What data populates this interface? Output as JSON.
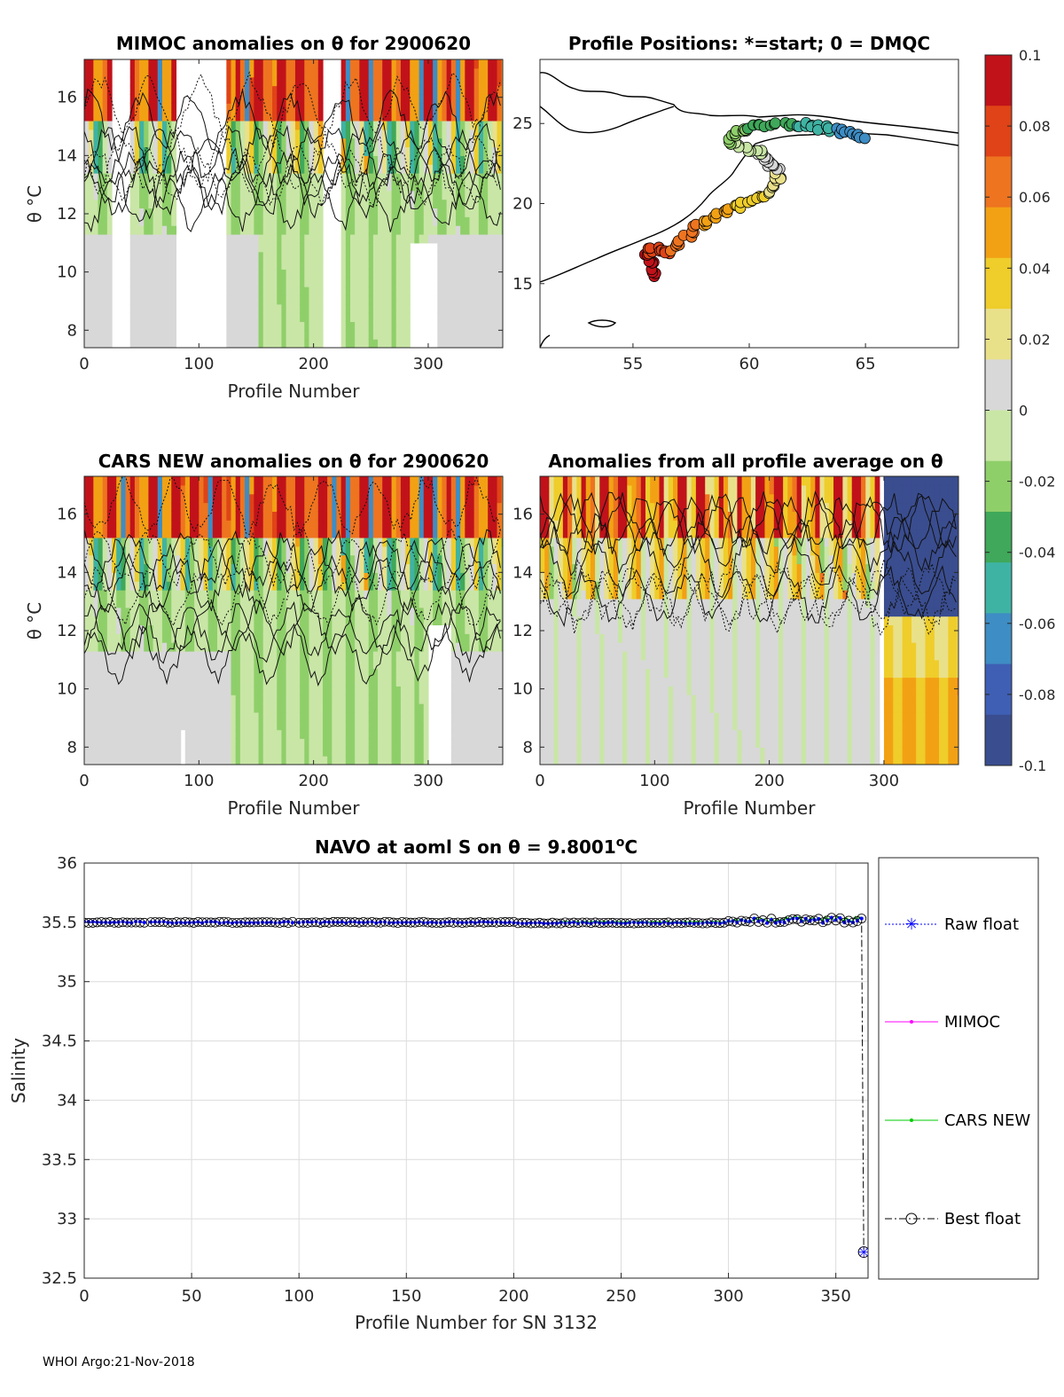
{
  "footer": "WHOI Argo:21-Nov-2018",
  "colors": {
    "ramp": [
      "#3a4d8f",
      "#3f5fb4",
      "#3e8dc4",
      "#3fb3a3",
      "#3fa85a",
      "#8fcf6a",
      "#c9e6a6",
      "#d8d8d8",
      "#e9e08a",
      "#efcd2a",
      "#f2a114",
      "#ee7420",
      "#df4317",
      "#c1121a"
    ],
    "salinity_raw": "#0000ff",
    "salinity_mimoc": "#ff00ff",
    "salinity_cars": "#00cc00",
    "salinity_best": "#000000"
  },
  "panels": {
    "mimoc": {
      "title": "MIMOC anomalies on θ  for 2900620",
      "xlabel": "Profile Number",
      "ylabel": "θ °C",
      "xticks": [
        "0",
        "100",
        "200",
        "300"
      ],
      "yticks": [
        "8",
        "10",
        "12",
        "14",
        "16"
      ]
    },
    "map": {
      "title": "Profile Positions: *=start; 0 = DMQC",
      "xticks": [
        "55",
        "60",
        "65"
      ],
      "yticks": [
        "15",
        "20",
        "25"
      ]
    },
    "cars": {
      "title": "CARS NEW anomalies on θ for 2900620",
      "xlabel": "Profile Number",
      "ylabel": "θ °C",
      "xticks": [
        "0",
        "100",
        "200",
        "300"
      ],
      "yticks": [
        "8",
        "10",
        "12",
        "14",
        "16"
      ]
    },
    "avg": {
      "title": "Anomalies from all profile average on θ",
      "xlabel": "Profile Number",
      "xticks": [
        "0",
        "100",
        "200",
        "300"
      ],
      "yticks": [
        "8",
        "10",
        "12",
        "14",
        "16"
      ]
    }
  },
  "colorbar": {
    "ticks": [
      "0.1",
      "0.08",
      "0.06",
      "0.04",
      "0.02",
      "0",
      "-0.02",
      "-0.04",
      "-0.06",
      "-0.08",
      "-0.1"
    ]
  },
  "chart_data": [
    {
      "type": "heatmap",
      "title": "MIMOC anomalies on θ  for 2900620",
      "xlabel": "Profile Number",
      "ylabel": "θ °C",
      "xlim": [
        0,
        365
      ],
      "ylim": [
        7.4,
        17.3
      ],
      "clim": [
        -0.1,
        0.1
      ]
    },
    {
      "type": "scatter",
      "title": "Profile Positions: *=start; 0 = DMQC",
      "xlim": [
        51,
        69
      ],
      "ylim": [
        11,
        29
      ],
      "track": {
        "lon": [
          56.0,
          55.7,
          55.6,
          55.9,
          56.4,
          57.0,
          57.6,
          58.2,
          58.8,
          59.5,
          60.2,
          60.8,
          61.2,
          61.2,
          60.9,
          60.6,
          60.3,
          59.6,
          59.2,
          59.6,
          60.2,
          61.0,
          62.0,
          62.8,
          63.5,
          64.2,
          65.0
        ],
        "lat": [
          15.6,
          16.3,
          16.9,
          17.2,
          16.9,
          17.6,
          18.3,
          18.9,
          19.4,
          19.8,
          20.2,
          20.7,
          21.3,
          22.0,
          22.5,
          22.9,
          23.2,
          23.6,
          24.0,
          24.5,
          24.8,
          24.9,
          25.0,
          24.8,
          24.6,
          24.4,
          24.2
        ]
      }
    },
    {
      "type": "heatmap",
      "title": "CARS NEW anomalies on θ for 2900620",
      "xlabel": "Profile Number",
      "ylabel": "θ °C",
      "xlim": [
        0,
        365
      ],
      "ylim": [
        7.4,
        17.3
      ],
      "clim": [
        -0.1,
        0.1
      ]
    },
    {
      "type": "heatmap",
      "title": "Anomalies from all profile average on θ",
      "xlabel": "Profile Number",
      "xlim": [
        0,
        365
      ],
      "ylim": [
        7.4,
        17.3
      ],
      "clim": [
        -0.1,
        0.1
      ]
    },
    {
      "type": "line",
      "title": "NAVO at aoml S on θ = 9.8001°C",
      "title_prefix": "NAVO at aoml S on θ = 9.8001",
      "title_deg": "o",
      "title_unit": "C",
      "xlabel": "Profile Number for SN 3132",
      "ylabel": "Salinity",
      "xlim": [
        0,
        365
      ],
      "ylim": [
        32.5,
        36
      ],
      "xticks": [
        "0",
        "50",
        "100",
        "150",
        "200",
        "250",
        "300",
        "350"
      ],
      "yticks": [
        "32.5",
        "33",
        "33.5",
        "34",
        "34.5",
        "35",
        "35.5",
        "36"
      ],
      "series": [
        {
          "name": "Raw float",
          "marker": "*",
          "style": "dotted",
          "approx_value": 35.5,
          "final_point": [
            363,
            32.72
          ]
        },
        {
          "name": "MIMOC",
          "marker": ".",
          "style": "solid",
          "approx_value": 35.5
        },
        {
          "name": "CARS NEW",
          "marker": ".",
          "style": "solid",
          "approx_value": 35.5
        },
        {
          "name": "Best float",
          "marker": "o",
          "style": "dashdot",
          "approx_value": 35.5,
          "final_point": [
            363,
            32.72
          ]
        }
      ],
      "gaps": [
        [
          29,
          31
        ],
        [
          97,
          99
        ]
      ],
      "legend": [
        "Raw float",
        "MIMOC",
        "CARS NEW",
        "Best float"
      ]
    }
  ]
}
